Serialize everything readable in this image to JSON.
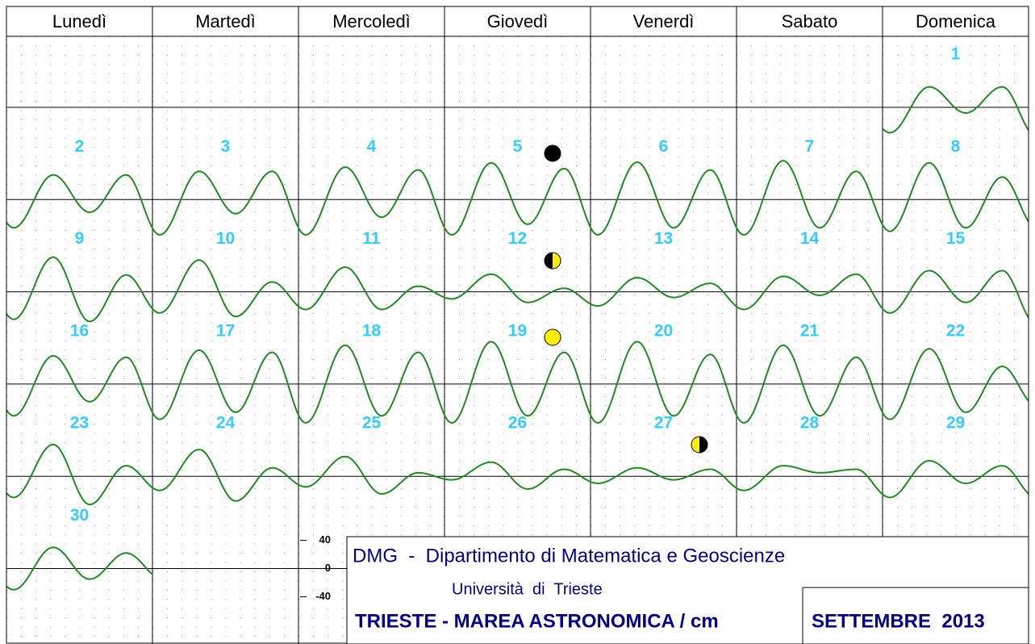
{
  "header": {
    "weekdays": [
      "Lunedì",
      "Martedì",
      "Mercoledì",
      "Giovedì",
      "Venerdì",
      "Sabato",
      "Domenica"
    ]
  },
  "days": [
    {
      "number": 1,
      "tide": [
        -36,
        29,
        -8,
        29
      ]
    },
    {
      "number": 2,
      "tide": [
        -40,
        35,
        -18,
        35
      ]
    },
    {
      "number": 3,
      "tide": [
        -50,
        40,
        -20,
        40
      ]
    },
    {
      "number": 4,
      "tide": [
        -50,
        46,
        -25,
        42
      ]
    },
    {
      "number": 5,
      "tide": [
        -50,
        52,
        -35,
        44
      ]
    },
    {
      "number": 6,
      "tide": [
        -50,
        53,
        -40,
        42
      ]
    },
    {
      "number": 7,
      "tide": [
        -50,
        55,
        -40,
        40
      ]
    },
    {
      "number": 8,
      "tide": [
        -45,
        52,
        -40,
        32
      ]
    },
    {
      "number": 9,
      "tide": [
        -39,
        49,
        -42,
        24
      ]
    },
    {
      "number": 10,
      "tide": [
        -30,
        45,
        -35,
        14
      ]
    },
    {
      "number": 11,
      "tide": [
        -25,
        35,
        -25,
        8
      ]
    },
    {
      "number": 12,
      "tide": [
        -10,
        25,
        -15,
        5
      ]
    },
    {
      "number": 13,
      "tide": [
        -20,
        20,
        -8,
        12
      ]
    },
    {
      "number": 14,
      "tide": [
        -25,
        22,
        -5,
        25
      ]
    },
    {
      "number": 15,
      "tide": [
        -30,
        30,
        -15,
        30
      ]
    },
    {
      "number": 16,
      "tide": [
        -45,
        40,
        -25,
        38
      ]
    },
    {
      "number": 17,
      "tide": [
        -50,
        48,
        -40,
        45
      ]
    },
    {
      "number": 18,
      "tide": [
        -55,
        55,
        -45,
        45
      ]
    },
    {
      "number": 19,
      "tide": [
        -55,
        60,
        -45,
        45
      ]
    },
    {
      "number": 20,
      "tide": [
        -55,
        60,
        -45,
        42
      ]
    },
    {
      "number": 21,
      "tide": [
        -55,
        55,
        -45,
        38
      ]
    },
    {
      "number": 22,
      "tide": [
        -50,
        50,
        -40,
        25
      ]
    },
    {
      "number": 23,
      "tide": [
        -30,
        45,
        -40,
        15
      ]
    },
    {
      "number": 24,
      "tide": [
        -20,
        38,
        -35,
        12
      ]
    },
    {
      "number": 25,
      "tide": [
        -15,
        28,
        -25,
        5
      ]
    },
    {
      "number": 26,
      "tide": [
        -5,
        20,
        -18,
        10
      ]
    },
    {
      "number": 27,
      "tide": [
        -10,
        12,
        -5,
        10
      ]
    },
    {
      "number": 28,
      "tide": [
        -20,
        15,
        5,
        10
      ]
    },
    {
      "number": 29,
      "tide": [
        -30,
        22,
        -10,
        15
      ]
    },
    {
      "number": 30,
      "tide": [
        -30,
        30,
        -15,
        22
      ]
    }
  ],
  "scale": {
    "ticks": [
      40,
      0,
      -40
    ]
  },
  "footer": {
    "institute": "DMG  -  Dipartimento di Matematica e Geoscienze",
    "university": "Università  di  Trieste",
    "title": "TRIESTE - MAREA ASTRONOMICA / cm",
    "month": "SETTEMBRE  2013"
  }
}
